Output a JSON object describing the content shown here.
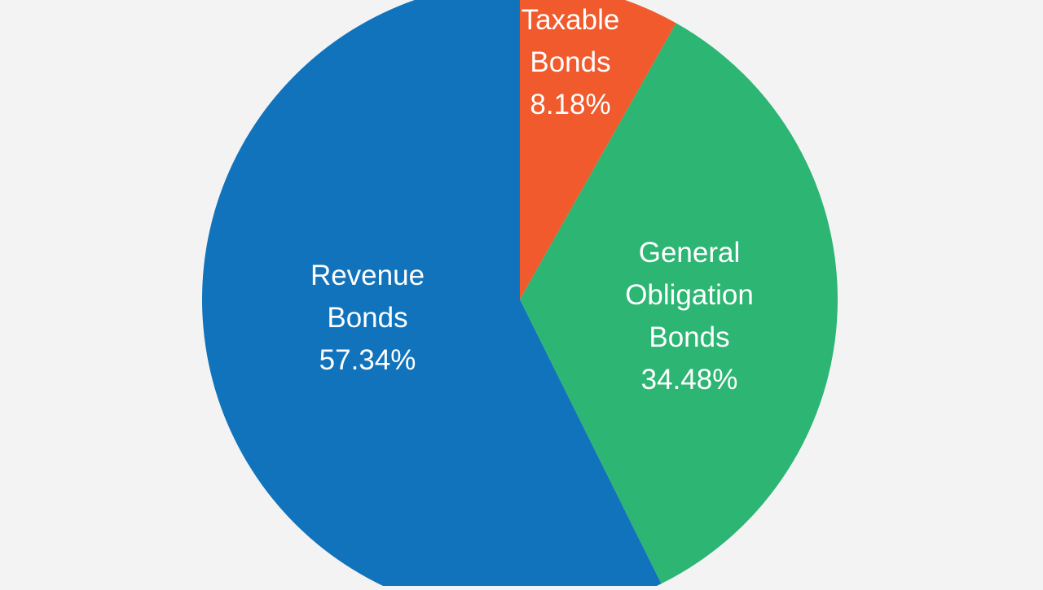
{
  "chart_data": {
    "type": "pie",
    "slices": [
      {
        "label_lines": [
          "Taxable",
          "Bonds"
        ],
        "value_label": "8.18%",
        "value": 8.18,
        "color": "#f05a2c"
      },
      {
        "label_lines": [
          "General",
          "Obligation",
          "Bonds"
        ],
        "value_label": "34.48%",
        "value": 34.48,
        "color": "#2db573"
      },
      {
        "label_lines": [
          "Revenue",
          "Bonds"
        ],
        "value_label": "57.34%",
        "value": 57.34,
        "color": "#1173bb"
      }
    ]
  },
  "colors": {
    "background": "#f3f3f4",
    "label_text": "#ffffff"
  }
}
